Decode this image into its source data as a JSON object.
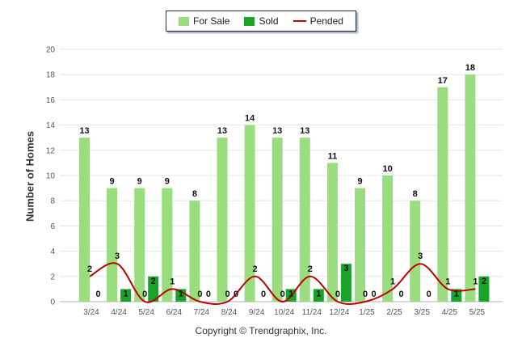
{
  "chart_data": {
    "type": "bar",
    "ylabel": "Number of Homes",
    "ylim": [
      0,
      20
    ],
    "ystep": 2,
    "grid": true,
    "legend_position": "top-center",
    "categories": [
      "3/24",
      "4/24",
      "5/24",
      "6/24",
      "7/24",
      "8/24",
      "9/24",
      "10/24",
      "11/24",
      "12/24",
      "1/25",
      "2/25",
      "3/25",
      "4/25",
      "5/25"
    ],
    "series": [
      {
        "name": "For Sale",
        "kind": "bar",
        "color": "#99dd7f",
        "values": [
          13,
          9,
          9,
          9,
          8,
          13,
          14,
          13,
          13,
          11,
          9,
          10,
          8,
          17,
          18
        ]
      },
      {
        "name": "Sold",
        "kind": "bar",
        "color": "#18a428",
        "values": [
          0,
          1,
          2,
          1,
          0,
          0,
          0,
          1,
          1,
          3,
          0,
          0,
          0,
          1,
          2
        ]
      },
      {
        "name": "Pended",
        "kind": "line",
        "color": "#c00000",
        "values": [
          2,
          3,
          0,
          1,
          0,
          0,
          2,
          0,
          2,
          0,
          0,
          1,
          3,
          1,
          1
        ]
      }
    ]
  },
  "copyright": "Copyright © Trendgraphix, Inc."
}
